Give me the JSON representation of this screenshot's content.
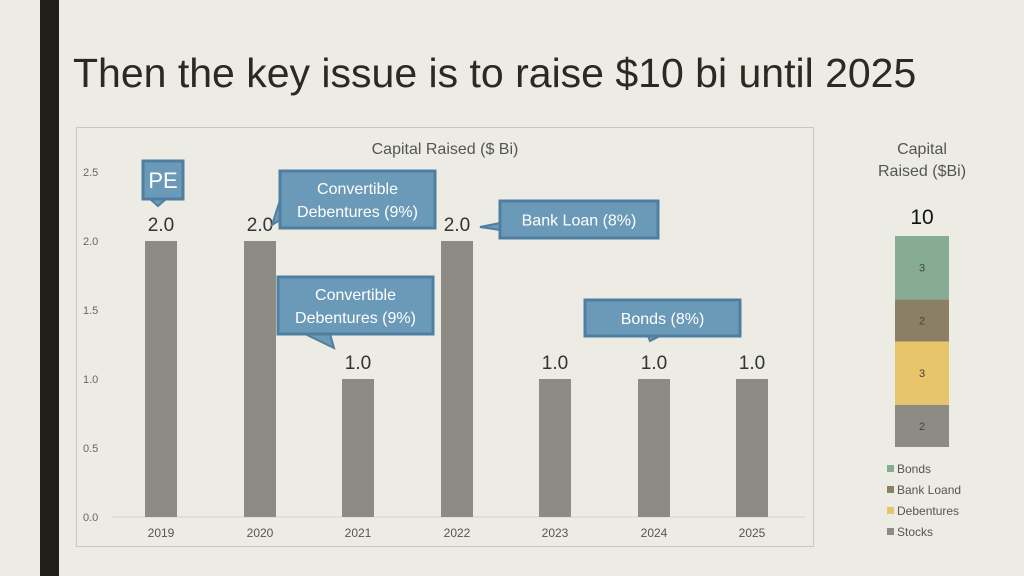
{
  "slide": {
    "title": "Then the key issue is to raise $10 bi until 2025"
  },
  "colors": {
    "background": "#ecebe4",
    "stripe": "#1f1f17",
    "bar": "#8c8c84",
    "callout": "#6b9ab8",
    "callout_border": "#4f7fa0"
  },
  "callouts": [
    {
      "year": "2019",
      "text": [
        "PE"
      ]
    },
    {
      "year": "2020",
      "text": [
        "Convertible",
        "Debentures (9%)"
      ]
    },
    {
      "year": "2021",
      "text": [
        "Convertible",
        "Debentures (9%)"
      ]
    },
    {
      "year": "2022",
      "text": [
        "Bank Loan (8%)"
      ]
    },
    {
      "year": "2024",
      "text": [
        "Bonds (8%)"
      ]
    }
  ],
  "chart_data": [
    {
      "type": "bar",
      "title": "Capital Raised ($ Bi)",
      "categories": [
        "2019",
        "2020",
        "2021",
        "2022",
        "2023",
        "2024",
        "2025"
      ],
      "values": [
        2.0,
        2.0,
        1.0,
        2.0,
        1.0,
        1.0,
        1.0
      ],
      "data_labels": [
        "2.0",
        "2.0",
        "1.0",
        "2.0",
        "1.0",
        "1.0",
        "1.0"
      ],
      "ylim": [
        0,
        2.5
      ],
      "yticks": [
        "0.0",
        "0.5",
        "1.0",
        "1.5",
        "2.0",
        "2.5"
      ],
      "grid": false,
      "legend": "none"
    },
    {
      "type": "bar",
      "stacked": true,
      "title": "Capital Raised ($Bi)",
      "total_label": "10",
      "series": [
        {
          "name": "Stocks",
          "value": 2,
          "color": "#8c8c84"
        },
        {
          "name": "Debentures",
          "value": 3,
          "color": "#e8c46a"
        },
        {
          "name": "Bank Loand",
          "value": 2,
          "color": "#8b7f66"
        },
        {
          "name": "Bonds",
          "value": 3,
          "color": "#86ad93"
        }
      ],
      "legend": "bottom"
    }
  ]
}
